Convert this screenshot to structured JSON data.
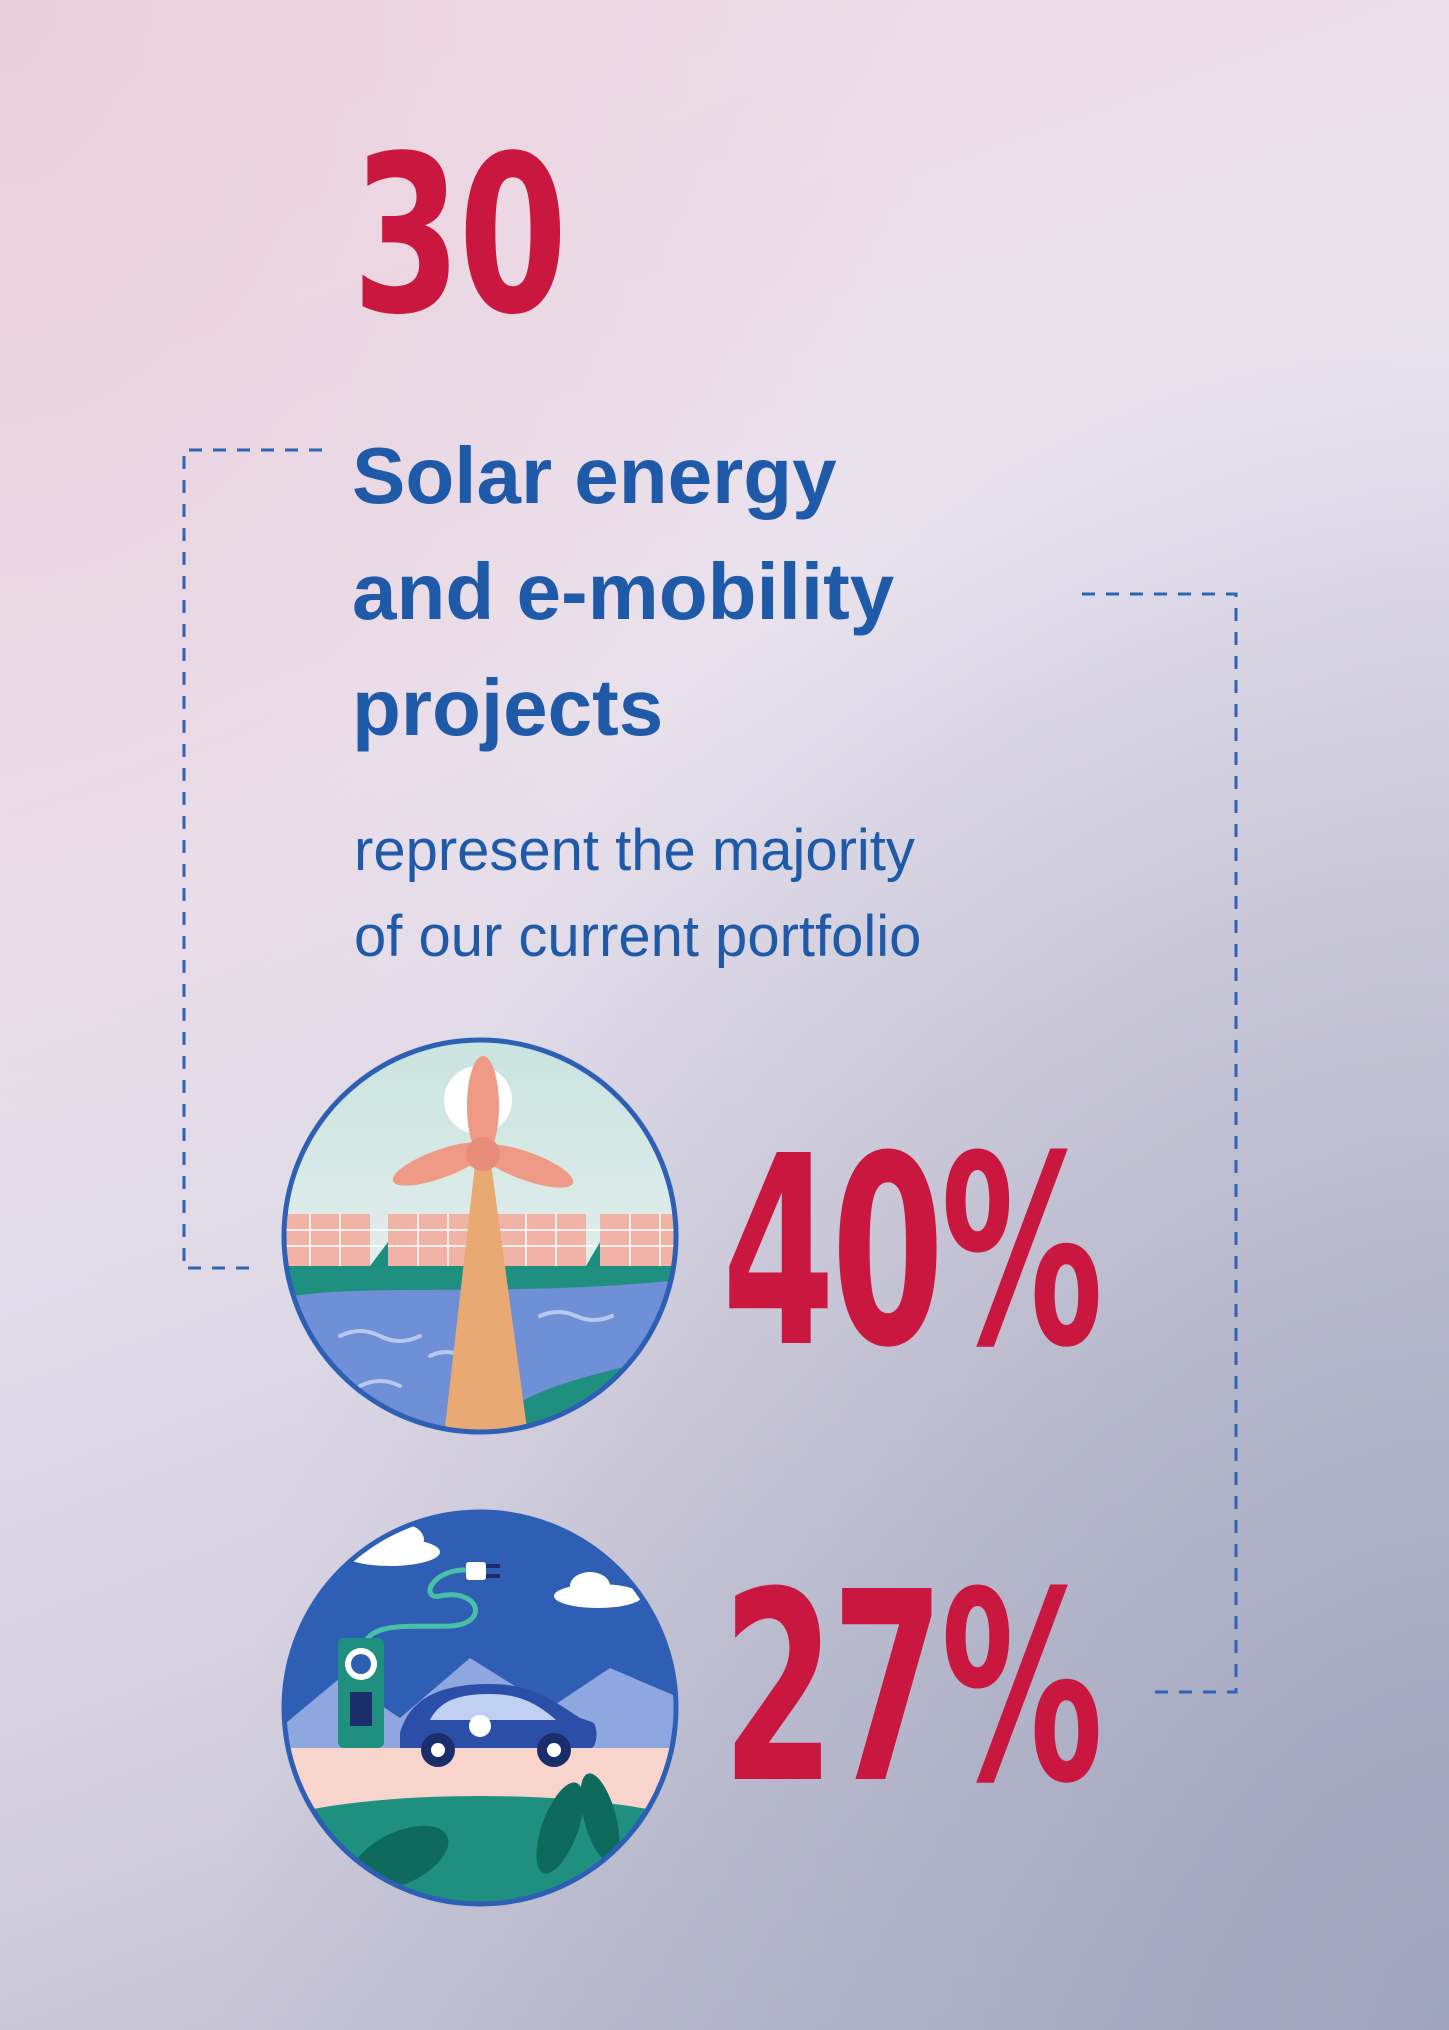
{
  "stat": {
    "number": "30",
    "headline": [
      "Solar energy",
      "and e-mobility",
      "projects"
    ],
    "subtext": [
      "represent the majority",
      "of our current portfolio"
    ]
  },
  "breakdown": [
    {
      "value": "40%",
      "fraction": 0.4,
      "icon": "solar-wind-icon"
    },
    {
      "value": "27%",
      "fraction": 0.27,
      "icon": "ev-charging-icon"
    }
  ],
  "colors": {
    "accent_red": "#c9173f",
    "brand_blue": "#1e5aa8"
  }
}
